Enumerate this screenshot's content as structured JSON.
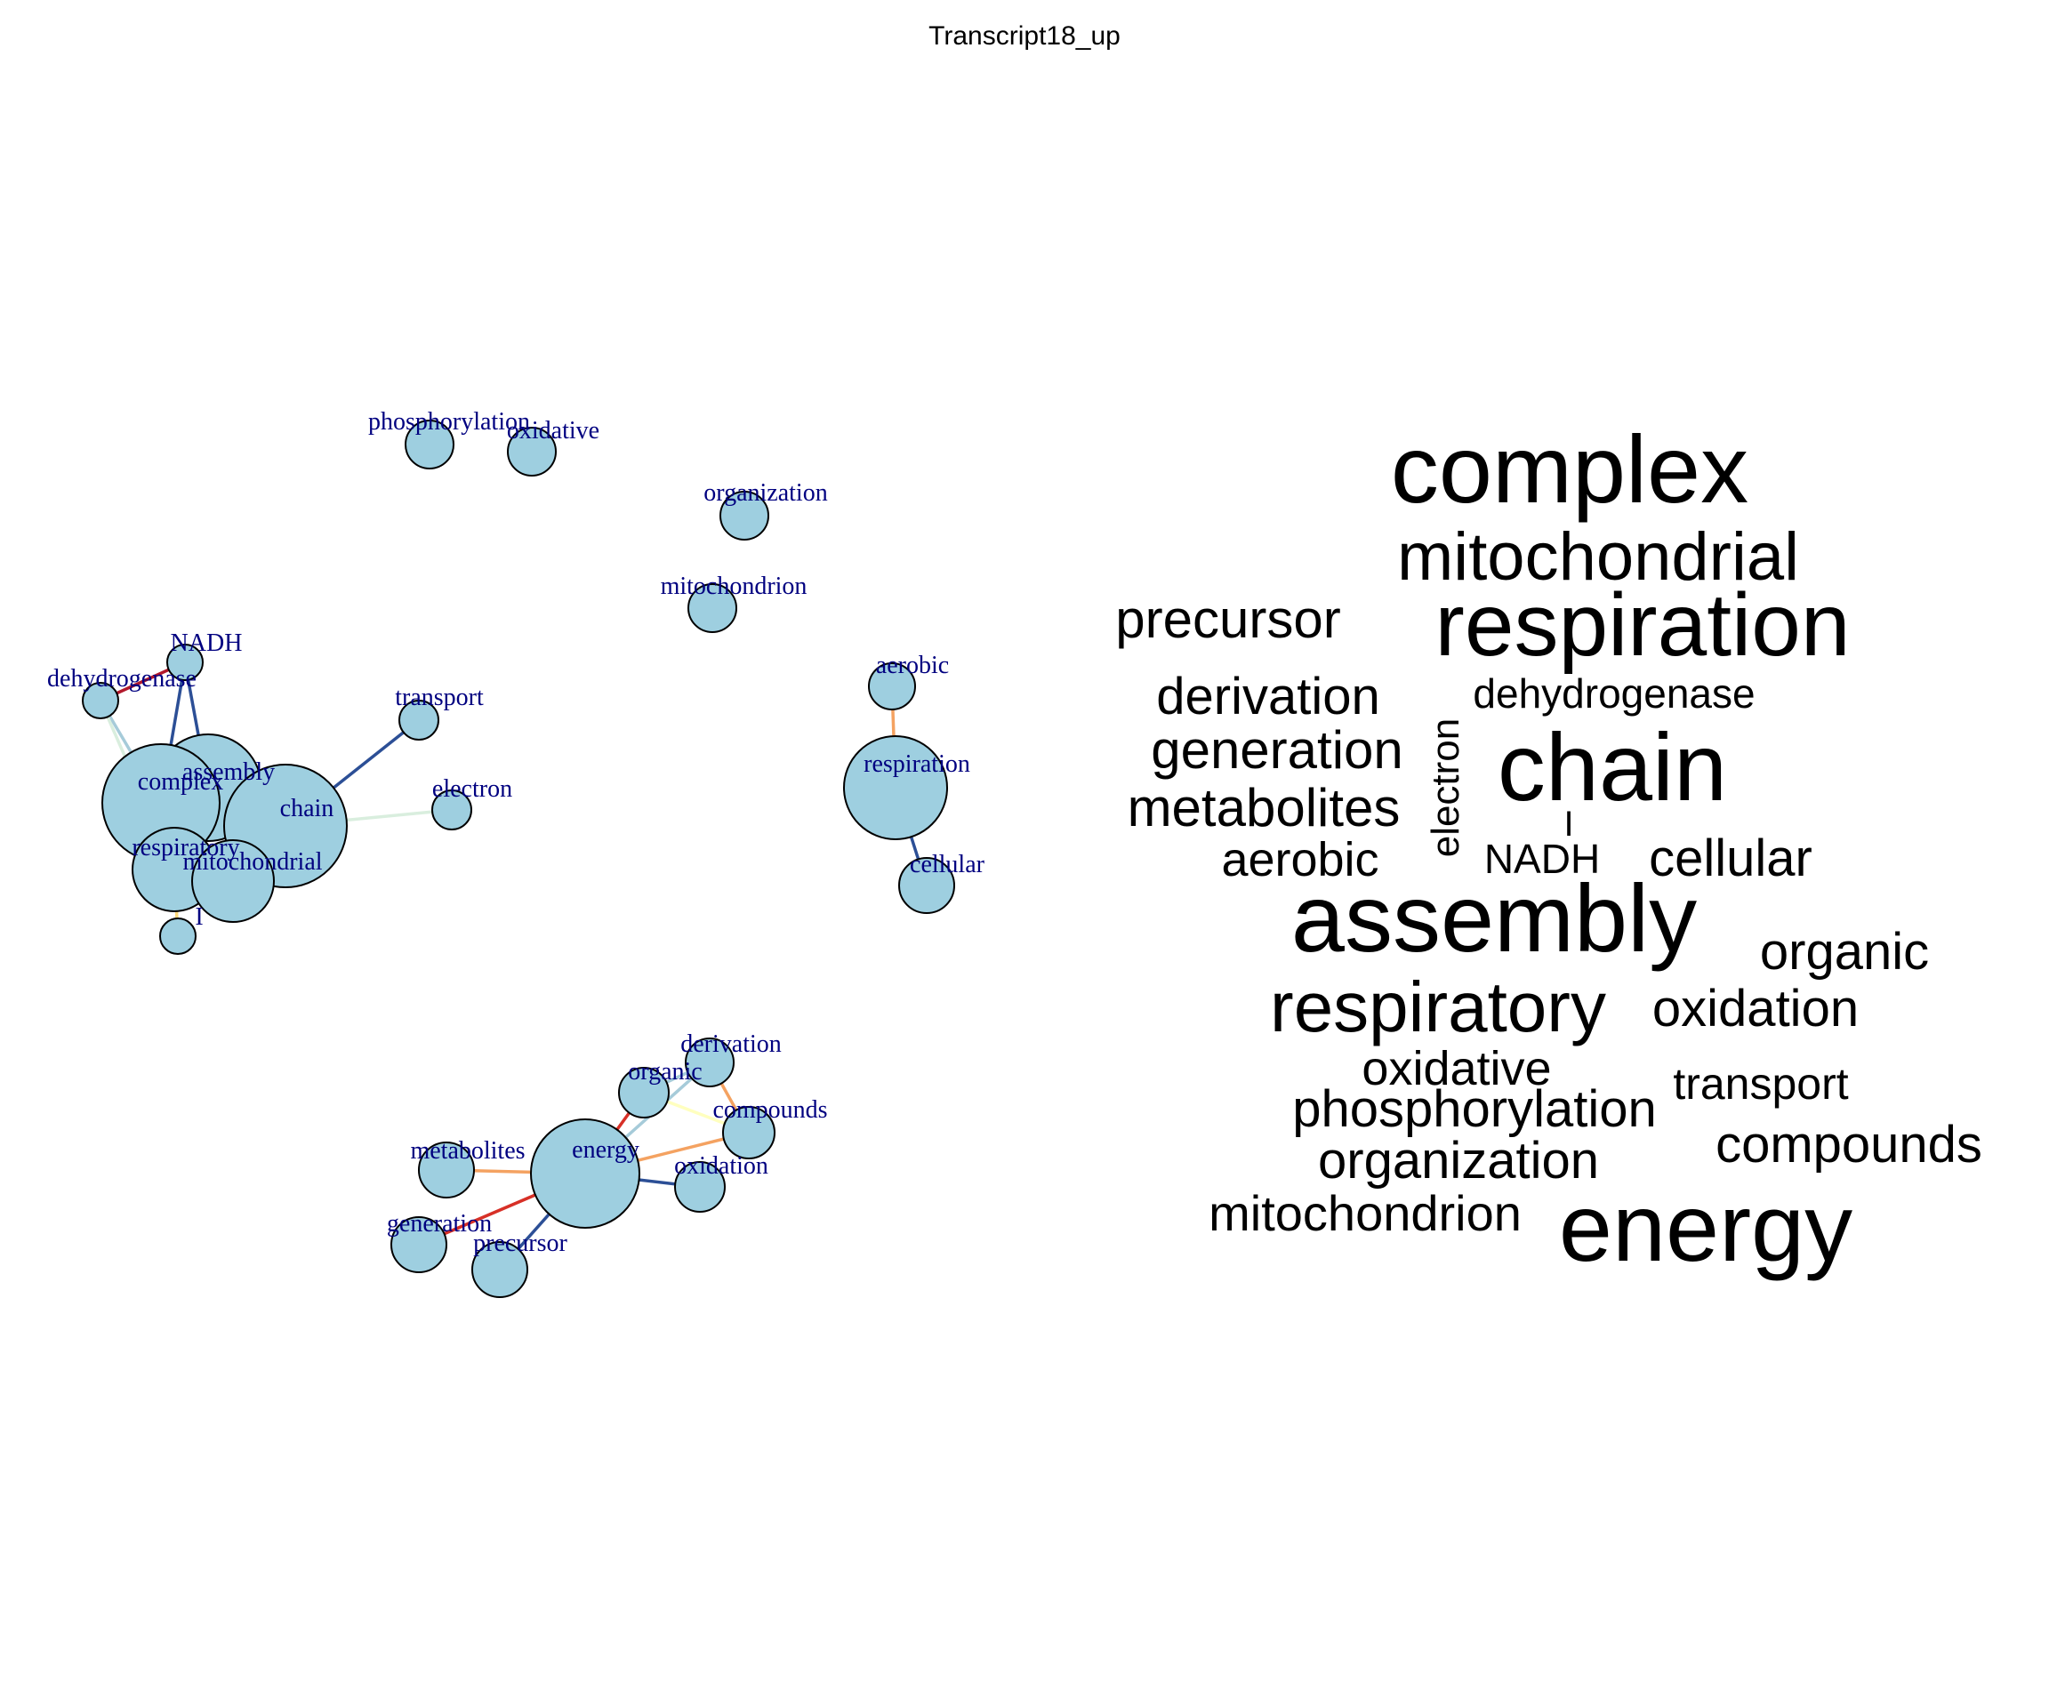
{
  "title": "Transcript18_up",
  "network": {
    "nodes": [
      {
        "id": "phosphorylation",
        "label": "phosphorylation"
      },
      {
        "id": "oxidative",
        "label": "oxidative"
      },
      {
        "id": "organization",
        "label": "organization"
      },
      {
        "id": "mitochondrion",
        "label": "mitochondrion"
      },
      {
        "id": "NADH",
        "label": "NADH"
      },
      {
        "id": "dehydrogenase",
        "label": "dehydrogenase"
      },
      {
        "id": "transport",
        "label": "transport"
      },
      {
        "id": "assembly",
        "label": "assembly"
      },
      {
        "id": "complex",
        "label": "complex"
      },
      {
        "id": "chain",
        "label": "chain"
      },
      {
        "id": "electron",
        "label": "electron"
      },
      {
        "id": "respiratory",
        "label": "respiratory"
      },
      {
        "id": "mitochondrial",
        "label": "mitochondrial"
      },
      {
        "id": "I",
        "label": "I"
      },
      {
        "id": "aerobic",
        "label": "aerobic"
      },
      {
        "id": "respiration",
        "label": "respiration"
      },
      {
        "id": "cellular",
        "label": "cellular"
      },
      {
        "id": "derivation",
        "label": "derivation"
      },
      {
        "id": "organic",
        "label": "organic"
      },
      {
        "id": "compounds",
        "label": "compounds"
      },
      {
        "id": "metabolites",
        "label": "metabolites"
      },
      {
        "id": "energy",
        "label": "energy"
      },
      {
        "id": "oxidation",
        "label": "oxidation"
      },
      {
        "id": "generation",
        "label": "generation"
      },
      {
        "id": "precursor",
        "label": "precursor"
      }
    ],
    "edges": [
      {
        "source": "dehydrogenase",
        "target": "NADH",
        "color": "#b2182b"
      },
      {
        "source": "NADH",
        "target": "complex",
        "color": "#2c4f96"
      },
      {
        "source": "NADH",
        "target": "assembly",
        "color": "#2c4f96"
      },
      {
        "source": "dehydrogenase",
        "target": "complex",
        "color": "#a6cbd9"
      },
      {
        "source": "dehydrogenase",
        "target": "respiratory",
        "color": "#d9eede"
      },
      {
        "source": "chain",
        "target": "transport",
        "color": "#2c4f96"
      },
      {
        "source": "chain",
        "target": "electron",
        "color": "#d9eede"
      },
      {
        "source": "respiratory",
        "target": "I",
        "color": "#fdd87a"
      },
      {
        "source": "aerobic",
        "target": "respiration",
        "color": "#f4a261"
      },
      {
        "source": "respiration",
        "target": "cellular",
        "color": "#2c4f96"
      },
      {
        "source": "energy",
        "target": "organic",
        "color": "#d73027"
      },
      {
        "source": "energy",
        "target": "derivation",
        "color": "#a6cbd9"
      },
      {
        "source": "organic",
        "target": "derivation",
        "color": "#a6cbd9"
      },
      {
        "source": "derivation",
        "target": "compounds",
        "color": "#f4a261"
      },
      {
        "source": "organic",
        "target": "compounds",
        "color": "#ffffbf"
      },
      {
        "source": "energy",
        "target": "compounds",
        "color": "#f4a261"
      },
      {
        "source": "energy",
        "target": "oxidation",
        "color": "#2c4f96"
      },
      {
        "source": "energy",
        "target": "metabolites",
        "color": "#f4a261"
      },
      {
        "source": "energy",
        "target": "generation",
        "color": "#d73027"
      },
      {
        "source": "energy",
        "target": "precursor",
        "color": "#2c4f96"
      }
    ]
  },
  "wordcloud": [
    {
      "word": "complex",
      "weight": 1.0
    },
    {
      "word": "mitochondrial",
      "weight": 0.66
    },
    {
      "word": "respiration",
      "weight": 0.92
    },
    {
      "word": "precursor",
      "weight": 0.5
    },
    {
      "word": "derivation",
      "weight": 0.5
    },
    {
      "word": "dehydrogenase",
      "weight": 0.4
    },
    {
      "word": "generation",
      "weight": 0.5
    },
    {
      "word": "electron",
      "weight": 0.44
    },
    {
      "word": "chain",
      "weight": 1.0
    },
    {
      "word": "metabolites",
      "weight": 0.5
    },
    {
      "word": "I",
      "weight": 0.3
    },
    {
      "word": "aerobic",
      "weight": 0.44
    },
    {
      "word": "NADH",
      "weight": 0.4
    },
    {
      "word": "cellular",
      "weight": 0.5
    },
    {
      "word": "assembly",
      "weight": 1.0
    },
    {
      "word": "organic",
      "weight": 0.5
    },
    {
      "word": "respiratory",
      "weight": 0.66
    },
    {
      "word": "oxidation",
      "weight": 0.5
    },
    {
      "word": "oxidative",
      "weight": 0.44
    },
    {
      "word": "transport",
      "weight": 0.44
    },
    {
      "word": "phosphorylation",
      "weight": 0.5
    },
    {
      "word": "compounds",
      "weight": 0.5
    },
    {
      "word": "organization",
      "weight": 0.5
    },
    {
      "word": "mitochondrion",
      "weight": 0.48
    },
    {
      "word": "energy",
      "weight": 1.0
    }
  ]
}
